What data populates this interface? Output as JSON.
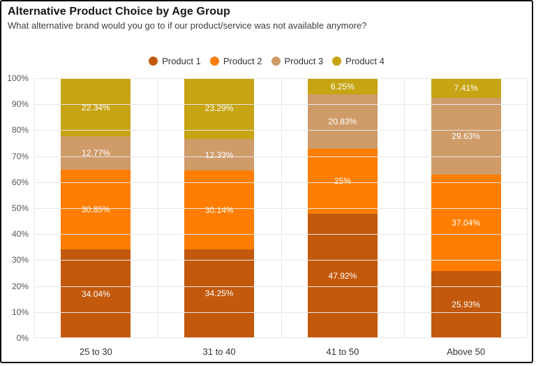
{
  "header": {
    "title": "Alternative Product Choice by Age Group",
    "subtitle": "What alternative brand would you go to if our product/service was not available anymore?"
  },
  "chart_data": {
    "type": "bar",
    "stacked": true,
    "orientation": "vertical",
    "title": "Alternative Product Choice by Age Group",
    "subtitle": "What alternative brand would you go to if our product/service was not available anymore?",
    "categories": [
      "25 to 30",
      "31 to 40",
      "41 to 50",
      "Above 50"
    ],
    "series": [
      {
        "name": "Product 1",
        "color": "#C2590D",
        "values": [
          34.04,
          34.25,
          47.92,
          25.93
        ],
        "labels": [
          "34.04%",
          "34.25%",
          "47.92%",
          "25.93%"
        ]
      },
      {
        "name": "Product 2",
        "color": "#FF7D00",
        "values": [
          30.85,
          30.14,
          25,
          37.04
        ],
        "labels": [
          "30.85%",
          "30.14%",
          "25%",
          "37.04%"
        ]
      },
      {
        "name": "Product 3",
        "color": "#CF9B69",
        "values": [
          12.77,
          12.33,
          20.83,
          29.63
        ],
        "labels": [
          "12.77%",
          "12.33%",
          "20.83%",
          "29.63%"
        ]
      },
      {
        "name": "Product 4",
        "color": "#C6A413",
        "values": [
          22.34,
          23.29,
          6.25,
          7.41
        ],
        "labels": [
          "22.34%",
          "23.29%",
          "6.25%",
          "7.41%"
        ]
      }
    ],
    "yticks": [
      "0%",
      "10%",
      "20%",
      "30%",
      "40%",
      "50%",
      "60%",
      "70%",
      "80%",
      "90%",
      "100%"
    ],
    "ylim": [
      0,
      100
    ],
    "grid": true,
    "legend_position": "top",
    "label_color": "#ffffff"
  }
}
